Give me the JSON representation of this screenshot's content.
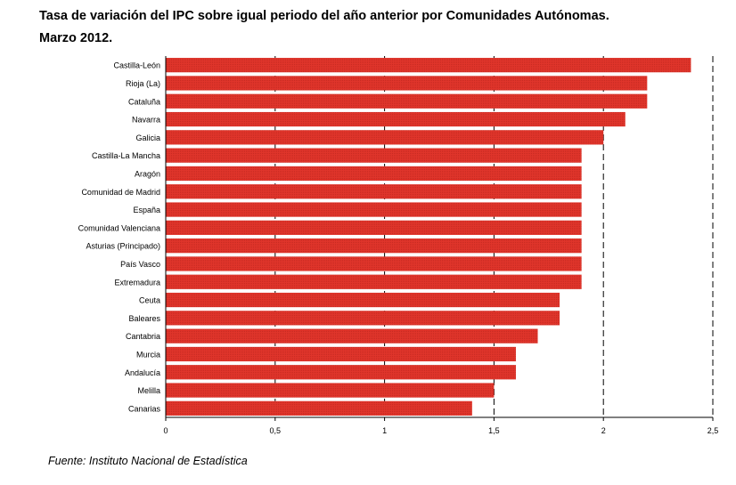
{
  "chart_data": {
    "type": "bar",
    "orientation": "horizontal",
    "title_line1": "Tasa de variación del IPC sobre igual periodo del año anterior por Comunidades Autónomas.",
    "title_line2": "Marzo 2012.",
    "categories": [
      "Castilla-León",
      "Rioja (La)",
      "Cataluña",
      "Navarra",
      "Galicia",
      "Castilla-La Mancha",
      "Aragón",
      "Comunidad de Madrid",
      "España",
      "Comunidad Valenciana",
      "Asturias (Principado)",
      "País Vasco",
      "Extremadura",
      "Ceuta",
      "Baleares",
      "Cantabria",
      "Murcia",
      "Andalucía",
      "Melilla",
      "Canarias"
    ],
    "values": [
      2.4,
      2.2,
      2.2,
      2.1,
      2.0,
      1.9,
      1.9,
      1.9,
      1.9,
      1.9,
      1.9,
      1.9,
      1.9,
      1.8,
      1.8,
      1.7,
      1.6,
      1.6,
      1.5,
      1.4
    ],
    "xlim": [
      0,
      2.5
    ],
    "xticks": [
      0,
      0.5,
      1,
      1.5,
      2,
      2.5
    ],
    "xtick_labels": [
      "0",
      "0,5",
      "1",
      "1,5",
      "2",
      "2,5"
    ],
    "bar_color": "#e0352b",
    "gridlines": "vertical dashed",
    "source": "Fuente: Instituto Nacional de Estadística"
  }
}
